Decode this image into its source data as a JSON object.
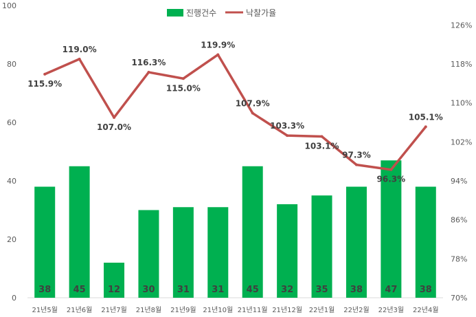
{
  "chart_data": {
    "type": "bar",
    "categories": [
      "21년5월",
      "21년6월",
      "21년7월",
      "21년8월",
      "21년9월",
      "21년10월",
      "21년11월",
      "21년12월",
      "22년1월",
      "22년2월",
      "22년3월",
      "22년4월"
    ],
    "series": [
      {
        "name": "진행건수",
        "type": "bar",
        "axis": "left",
        "color": "#00b050",
        "values": [
          38,
          45,
          12,
          30,
          31,
          31,
          45,
          32,
          35,
          38,
          47,
          38
        ],
        "data_labels": [
          "38",
          "45",
          "12",
          "30",
          "31",
          "31",
          "45",
          "32",
          "35",
          "38",
          "47",
          "38"
        ]
      },
      {
        "name": "낙찰가율",
        "type": "line",
        "axis": "right",
        "color": "#c0504d",
        "values": [
          115.9,
          119.0,
          107.0,
          116.3,
          115.0,
          119.9,
          107.9,
          103.3,
          103.1,
          97.3,
          96.3,
          105.1
        ],
        "data_labels": [
          "115.9%",
          "119.0%",
          "107.0%",
          "116.3%",
          "115.0%",
          "119.9%",
          "107.9%",
          "103.3%",
          "103.1%",
          "97.3%",
          "96.3%",
          "105.1%"
        ]
      }
    ],
    "y_left": {
      "min": 0,
      "max": 100,
      "ticks": [
        "0",
        "20",
        "40",
        "60",
        "80",
        "100"
      ],
      "tick_values": [
        0,
        20,
        40,
        60,
        80,
        100
      ]
    },
    "y_right": {
      "min": 70,
      "max": 130,
      "ticks": [
        "70%",
        "78%",
        "86%",
        "94%",
        "102%",
        "110%",
        "118%",
        "126%"
      ],
      "tick_values": [
        70,
        78,
        86,
        94,
        102,
        110,
        118,
        126
      ]
    },
    "grid": false,
    "legend": "top-center",
    "title": "",
    "xlabel": "",
    "ylabel": ""
  }
}
